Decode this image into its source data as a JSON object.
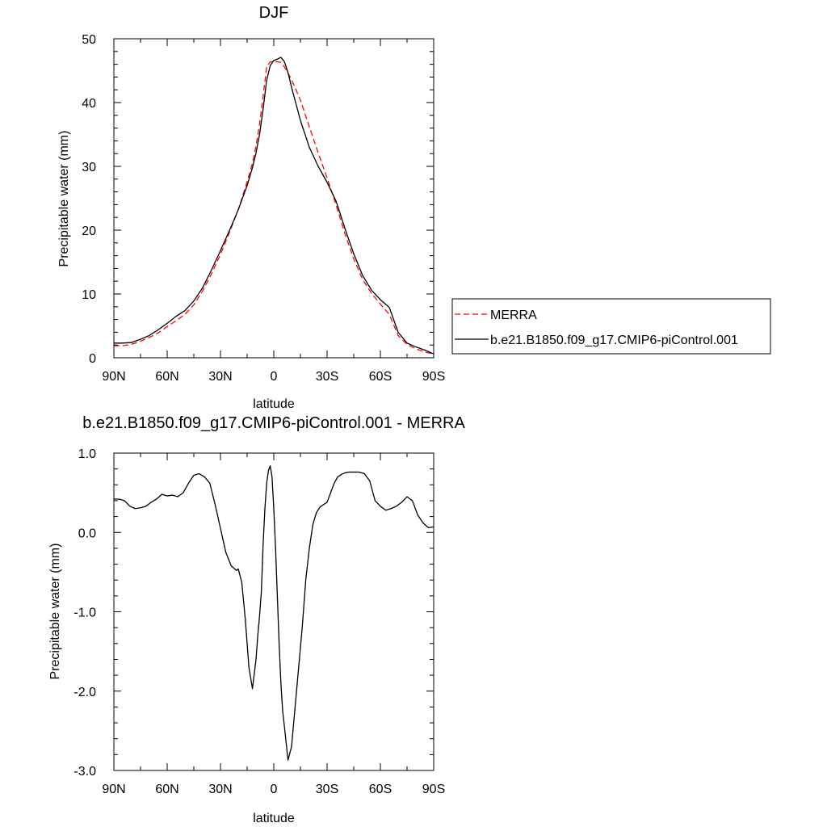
{
  "chart_data": [
    {
      "type": "line",
      "title": "DJF",
      "xlabel": "latitude",
      "ylabel": "Precipitable water (mm)",
      "xlim": [
        90,
        -90
      ],
      "ylim": [
        0,
        50
      ],
      "x_ticks": [
        90,
        60,
        30,
        0,
        -30,
        -60,
        -90
      ],
      "x_tick_labels": [
        "90N",
        "60N",
        "30N",
        "0",
        "30S",
        "60S",
        "90S"
      ],
      "y_ticks": [
        0,
        10,
        20,
        30,
        40,
        50
      ],
      "y_tick_labels": [
        "0",
        "10",
        "20",
        "30",
        "40",
        "50"
      ],
      "grid": false,
      "legend": {
        "placement": "right-outside",
        "entries": [
          {
            "label": "MERRA",
            "color": "#ff0000",
            "style": "dashed"
          },
          {
            "label": "b.e21.B1850.f09_g17.CMIP6-piControl.001",
            "color": "#000000",
            "style": "solid"
          }
        ]
      },
      "series": [
        {
          "name": "MERRA",
          "color": "#ff0000",
          "style": "dashed",
          "x": [
            90,
            85,
            80,
            75,
            70,
            65,
            60,
            55,
            50,
            45,
            40,
            35,
            30,
            25,
            20,
            15,
            12,
            10,
            8,
            6,
            4,
            2,
            0,
            -2,
            -4,
            -6,
            -8,
            -10,
            -15,
            -20,
            -25,
            -30,
            -35,
            -40,
            -45,
            -50,
            -55,
            -60,
            -65,
            -70,
            -75,
            -80,
            -85,
            -90
          ],
          "y": [
            1.9,
            1.9,
            2.1,
            2.6,
            3.2,
            3.9,
            4.9,
            5.8,
            6.8,
            8.3,
            10.5,
            13.2,
            16.2,
            19.6,
            23.2,
            27.6,
            30.5,
            33.2,
            36.6,
            41.0,
            45.6,
            46.4,
            46.4,
            46.4,
            46.3,
            45.6,
            44.6,
            43.6,
            40.4,
            36.2,
            32.1,
            28.2,
            24.0,
            19.5,
            15.5,
            12.3,
            10.1,
            8.4,
            6.8,
            3.5,
            2.1,
            1.4,
            0.9,
            0.6
          ]
        },
        {
          "name": "b.e21.B1850.f09_g17.CMIP6-piControl.001",
          "color": "#000000",
          "style": "solid",
          "x": [
            90,
            85,
            80,
            75,
            70,
            65,
            60,
            55,
            50,
            45,
            40,
            35,
            30,
            25,
            20,
            15,
            12,
            10,
            8,
            6,
            4,
            2,
            0,
            -2,
            -4,
            -6,
            -8,
            -10,
            -15,
            -20,
            -25,
            -30,
            -35,
            -40,
            -45,
            -50,
            -55,
            -60,
            -65,
            -70,
            -75,
            -80,
            -85,
            -90
          ],
          "y": [
            2.3,
            2.3,
            2.4,
            2.9,
            3.5,
            4.4,
            5.4,
            6.5,
            7.4,
            8.9,
            11.0,
            13.8,
            16.8,
            19.9,
            23.2,
            27.0,
            29.8,
            32.1,
            35.0,
            39.0,
            43.5,
            45.8,
            46.6,
            46.8,
            47.1,
            46.4,
            44.7,
            42.4,
            37.2,
            33.0,
            30.0,
            27.5,
            24.6,
            20.3,
            16.3,
            12.9,
            10.6,
            9.1,
            7.9,
            4.0,
            2.3,
            1.7,
            1.2,
            0.6
          ]
        }
      ]
    },
    {
      "type": "line",
      "title": "b.e21.B1850.f09_g17.CMIP6-piControl.001 - MERRA",
      "xlabel": "latitude",
      "ylabel": "Precipitable water (mm)",
      "xlim": [
        90,
        -90
      ],
      "ylim": [
        -3.0,
        1.0
      ],
      "x_ticks": [
        90,
        60,
        30,
        0,
        -30,
        -60,
        -90
      ],
      "x_tick_labels": [
        "90N",
        "60N",
        "30N",
        "0",
        "30S",
        "60S",
        "90S"
      ],
      "y_ticks": [
        1.0,
        0.0,
        -1.0,
        -2.0,
        -3.0
      ],
      "y_tick_labels": [
        "1.0",
        "0.0",
        "-1.0",
        "-2.0",
        "-3.0"
      ],
      "grid": false,
      "series": [
        {
          "name": "",
          "color": "#000000",
          "style": "solid",
          "x": [
            90,
            87,
            84,
            81,
            78,
            75,
            72,
            69,
            66,
            63,
            60,
            57,
            54,
            51,
            48,
            45,
            42,
            39,
            36,
            33,
            30,
            27,
            24,
            21,
            20,
            18,
            16,
            14,
            12,
            10,
            9,
            8,
            7,
            6,
            5,
            4,
            3,
            2,
            1,
            0,
            -1,
            -2,
            -3,
            -4,
            -5,
            -6,
            -8,
            -10,
            -12,
            -14,
            -16,
            -17,
            -18,
            -20,
            -22,
            -24,
            -26,
            -28,
            -30,
            -32,
            -34,
            -36,
            -38,
            -40,
            -42,
            -45,
            -48,
            -51,
            -54,
            -57,
            -60,
            -63,
            -66,
            -69,
            -72,
            -75,
            -78,
            -81,
            -84,
            -87,
            -90
          ],
          "y": [
            0.42,
            0.42,
            0.4,
            0.33,
            0.3,
            0.31,
            0.33,
            0.38,
            0.42,
            0.48,
            0.46,
            0.47,
            0.45,
            0.5,
            0.62,
            0.72,
            0.74,
            0.7,
            0.62,
            0.35,
            0.05,
            -0.25,
            -0.42,
            -0.48,
            -0.46,
            -0.63,
            -1.1,
            -1.7,
            -1.97,
            -1.6,
            -1.3,
            -1.05,
            -0.75,
            -0.15,
            0.3,
            0.62,
            0.78,
            0.84,
            0.7,
            0.3,
            -0.2,
            -0.8,
            -1.4,
            -1.9,
            -2.25,
            -2.45,
            -2.87,
            -2.7,
            -2.2,
            -1.7,
            -1.2,
            -0.9,
            -0.6,
            -0.2,
            0.1,
            0.25,
            0.32,
            0.35,
            0.38,
            0.5,
            0.62,
            0.7,
            0.73,
            0.75,
            0.76,
            0.76,
            0.76,
            0.74,
            0.65,
            0.4,
            0.33,
            0.28,
            0.3,
            0.33,
            0.38,
            0.45,
            0.4,
            0.22,
            0.12,
            0.06,
            0.07
          ]
        }
      ]
    }
  ]
}
